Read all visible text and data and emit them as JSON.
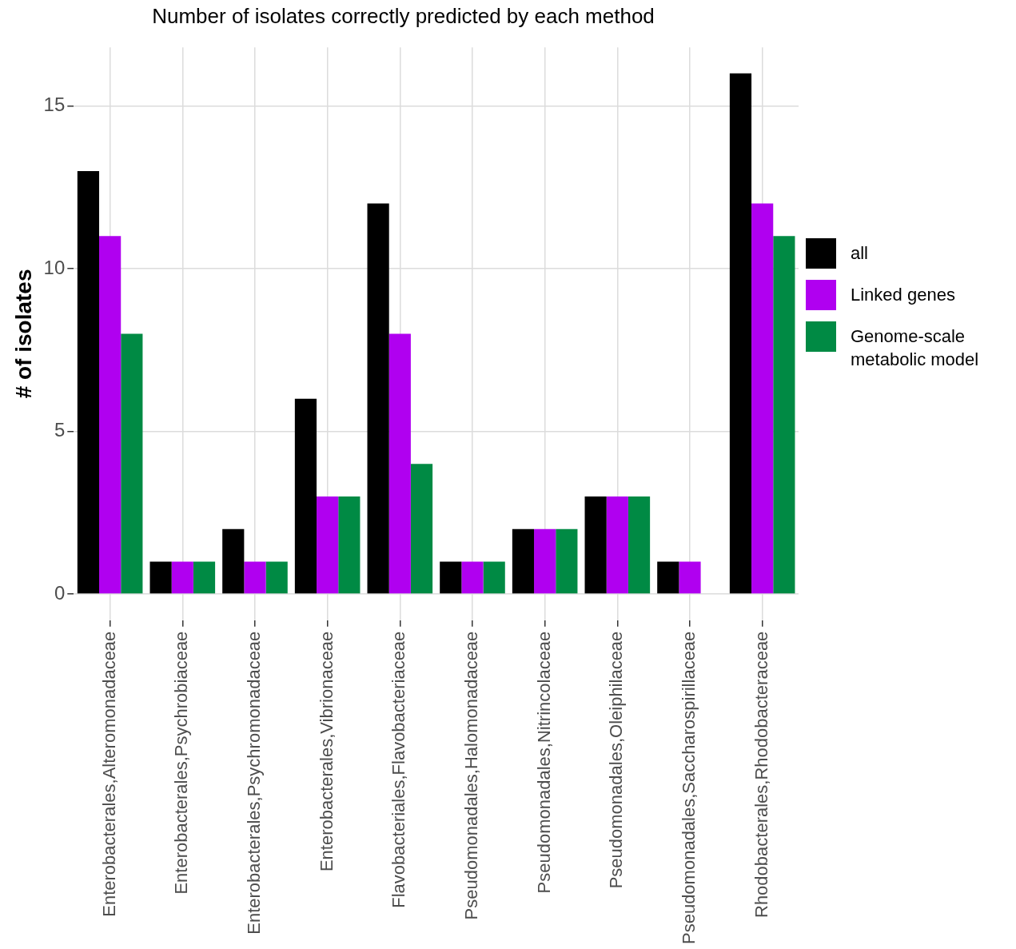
{
  "chart_data": {
    "type": "bar",
    "title": "Number of isolates correctly predicted by each method",
    "ylabel": "# of isolates",
    "categories": [
      "Enterobacterales,Alteromonadaceae",
      "Enterobacterales,Psychrobiaceae",
      "Enterobacterales,Psychromonadaceae",
      "Enterobacterales,Vibrionaceae",
      "Flavobacteriales,Flavobacteriaceae",
      "Pseudomonadales,Halomonadaceae",
      "Pseudomonadales,Nitrincolaceae",
      "Pseudomonadales,Oleiphilaceae",
      "Pseudomonadales,Saccharospirillaceae",
      "Rhodobacterales,Rhodobacteraceae"
    ],
    "series": [
      {
        "name": "all",
        "color": "#000000",
        "values": [
          13,
          1,
          2,
          6,
          12,
          1,
          2,
          3,
          1,
          16
        ]
      },
      {
        "name": "Linked genes",
        "color": "#b000f0",
        "values": [
          11,
          1,
          1,
          3,
          8,
          1,
          2,
          3,
          1,
          12
        ]
      },
      {
        "name": "Genome-scale metabolic model",
        "color": "#008a44",
        "values": [
          8,
          1,
          1,
          3,
          4,
          1,
          2,
          3,
          0,
          11
        ]
      }
    ],
    "ylim": [
      -0.8,
      16.8
    ],
    "yticks": [
      0,
      5,
      10,
      15
    ],
    "grid": true,
    "legend": "right"
  }
}
